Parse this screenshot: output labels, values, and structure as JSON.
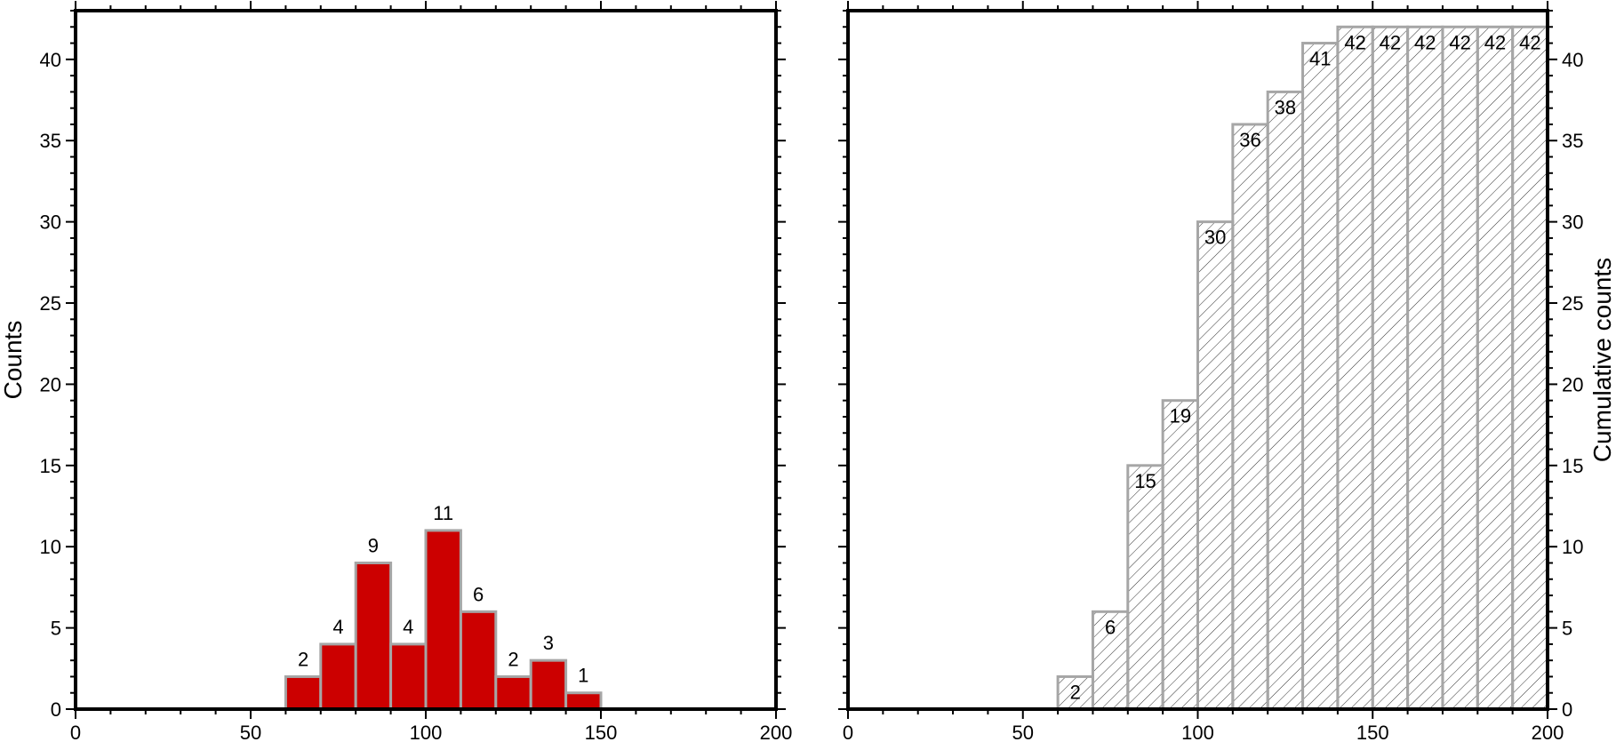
{
  "chart_data": [
    {
      "type": "bar",
      "bin_edges": [
        60,
        70,
        80,
        90,
        100,
        110,
        120,
        130,
        140,
        150
      ],
      "values": [
        2,
        4,
        9,
        4,
        11,
        6,
        2,
        3,
        1
      ],
      "xlabel": "",
      "ylabel": "Counts",
      "xlim": [
        0,
        200
      ],
      "ylim": [
        0,
        43
      ],
      "xticks": [
        0,
        50,
        100,
        150,
        200
      ],
      "yticks": [
        0,
        5,
        10,
        15,
        20,
        25,
        30,
        35,
        40
      ],
      "fill": "#cc0000",
      "edge": "#a6a6a6",
      "labels_position": "above",
      "y_axis_side": "left"
    },
    {
      "type": "bar",
      "bin_edges": [
        60,
        70,
        80,
        90,
        100,
        110,
        120,
        130,
        140,
        150,
        160,
        170,
        180,
        190,
        200
      ],
      "values": [
        2,
        6,
        15,
        19,
        30,
        36,
        38,
        41,
        42,
        42,
        42,
        42,
        42,
        42
      ],
      "xlabel": "",
      "ylabel": "Cumulative counts",
      "xlim": [
        0,
        200
      ],
      "ylim": [
        0,
        43
      ],
      "xticks": [
        0,
        50,
        100,
        150,
        200
      ],
      "yticks": [
        0,
        5,
        10,
        15,
        20,
        25,
        30,
        35,
        40
      ],
      "fill": "hatched",
      "edge": "#a6a6a6",
      "labels_position": "inside",
      "y_axis_side": "right"
    }
  ]
}
